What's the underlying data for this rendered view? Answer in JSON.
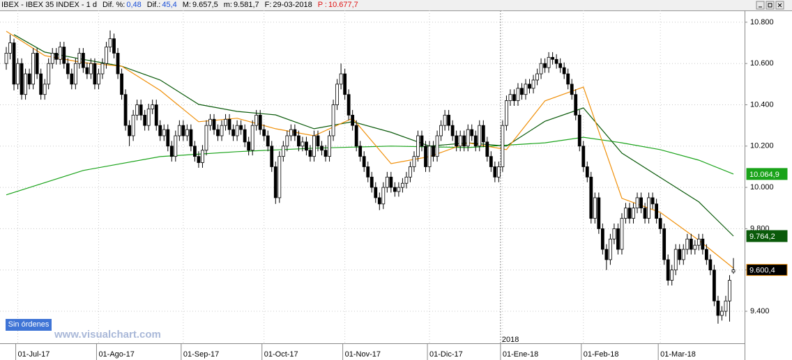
{
  "header": {
    "title": "IBEX - IBEX 35 INDEX - 1 d",
    "fields": [
      {
        "label": "Dif. %:",
        "value": "0,48",
        "color": "#1a4fd8"
      },
      {
        "label": "Dif.:",
        "value": "45,4",
        "color": "#1a4fd8"
      },
      {
        "label": "M:",
        "value": "9.657,5",
        "color": "#000000"
      },
      {
        "label": "m:",
        "value": "9.581,7",
        "color": "#000000"
      },
      {
        "label": "F:",
        "value": "29-03-2018",
        "color": "#000000"
      },
      {
        "label": "P :",
        "value": "10.677,7",
        "color": "#e01010"
      }
    ]
  },
  "button": "Sin órdenes",
  "watermark": "www.visualchart.com",
  "chart_data": {
    "type": "candlestick",
    "year_marker": "2018",
    "grid": true,
    "ylim": [
      9245,
      10857
    ],
    "yticks": [
      {
        "value": 10800,
        "label": "10.800"
      },
      {
        "value": 10600,
        "label": "10.600"
      },
      {
        "value": 10400,
        "label": "10.400"
      },
      {
        "value": 10200,
        "label": "10.200"
      },
      {
        "value": 10000,
        "label": "10.000"
      },
      {
        "value": 9800,
        "label": "9.800"
      },
      {
        "value": 9600,
        "label": "9.600"
      },
      {
        "value": 9400,
        "label": "9.400"
      }
    ],
    "categories": [
      null,
      null,
      null,
      "01-Jul-17",
      null,
      null,
      null,
      null,
      null,
      null,
      null,
      null,
      null,
      null,
      null,
      null,
      null,
      null,
      null,
      null,
      null,
      null,
      null,
      null,
      "01-Ago-17",
      null,
      null,
      null,
      null,
      null,
      null,
      null,
      null,
      null,
      null,
      null,
      null,
      null,
      null,
      null,
      null,
      null,
      null,
      null,
      null,
      null,
      "01-Sep-17",
      null,
      null,
      null,
      null,
      null,
      null,
      null,
      null,
      null,
      null,
      null,
      null,
      null,
      null,
      null,
      null,
      null,
      null,
      null,
      null,
      "01-Oct-17",
      null,
      null,
      null,
      null,
      null,
      null,
      null,
      null,
      null,
      null,
      null,
      null,
      null,
      null,
      null,
      null,
      null,
      null,
      null,
      null,
      "01-Nov-17",
      null,
      null,
      null,
      null,
      null,
      null,
      null,
      null,
      null,
      null,
      null,
      null,
      null,
      null,
      null,
      null,
      null,
      null,
      null,
      null,
      null,
      "01-Dic-17",
      null,
      null,
      null,
      null,
      null,
      null,
      null,
      null,
      null,
      null,
      null,
      null,
      null,
      null,
      null,
      null,
      null,
      null,
      "01-Ene-18",
      null,
      null,
      null,
      null,
      null,
      null,
      null,
      null,
      null,
      null,
      null,
      null,
      null,
      null,
      null,
      null,
      null,
      null,
      null,
      null,
      "01-Feb-18",
      null,
      null,
      null,
      null,
      null,
      null,
      null,
      null,
      null,
      null,
      null,
      null,
      null,
      null,
      null,
      null,
      null,
      null,
      null,
      "01-Mar-18",
      null,
      null,
      null,
      null,
      null,
      null,
      null,
      null,
      null,
      null,
      null,
      null,
      null,
      null,
      null,
      null,
      null,
      null,
      null
    ],
    "open": [
      10600,
      10650,
      10700,
      10500,
      10600,
      10450,
      10550,
      10500,
      10650,
      10550,
      10450,
      10500,
      10600,
      10650,
      10620,
      10680,
      10600,
      10550,
      10500,
      10600,
      10650,
      10580,
      10550,
      10600,
      10500,
      10550,
      10600,
      10680,
      10720,
      10650,
      10550,
      10450,
      10300,
      10250,
      10350,
      10400,
      10350,
      10300,
      10380,
      10400,
      10300,
      10250,
      10280,
      10200,
      10150,
      10250,
      10300,
      10250,
      10280,
      10200,
      10150,
      10120,
      10180,
      10300,
      10330,
      10280,
      10250,
      10300,
      10330,
      10280,
      10250,
      10300,
      10280,
      10220,
      10180,
      10300,
      10350,
      10280,
      10250,
      10200,
      10100,
      9950,
      10150,
      10200,
      10250,
      10280,
      10250,
      10200,
      10220,
      10180,
      10150,
      10250,
      10200,
      10180,
      10150,
      10250,
      10400,
      10500,
      10550,
      10450,
      10350,
      10300,
      10200,
      10150,
      10100,
      10050,
      10000,
      9950,
      9920,
      10000,
      10050,
      10000,
      9980,
      10000,
      10020,
      10050,
      10100,
      10150,
      10250,
      10200,
      10100,
      10200,
      10150,
      10250,
      10300,
      10350,
      10300,
      10250,
      10200,
      10250,
      10200,
      10280,
      10250,
      10200,
      10300,
      10220,
      10150,
      10100,
      10050,
      10100,
      10300,
      10420,
      10450,
      10420,
      10480,
      10450,
      10500,
      10480,
      10520,
      10550,
      10600,
      10580,
      10630,
      10620,
      10600,
      10580,
      10550,
      10500,
      10450,
      10350,
      10200,
      10100,
      10050,
      9850,
      9950,
      9800,
      9700,
      9650,
      9750,
      9800,
      9700,
      9850,
      9900,
      9850,
      9900,
      9950,
      9900,
      9850,
      9950,
      9920,
      9850,
      9800,
      9650,
      9550,
      9600,
      9700,
      9650,
      9700,
      9750,
      9700,
      9720,
      9750,
      9700,
      9650,
      9600,
      9450,
      9380,
      9400,
      9450,
      9590
    ],
    "high": [
      10680,
      10740,
      10720,
      10625,
      10625,
      10575,
      10575,
      10675,
      10675,
      10575,
      10525,
      10625,
      10675,
      10675,
      10705,
      10705,
      10625,
      10575,
      10625,
      10675,
      10675,
      10605,
      10625,
      10625,
      10575,
      10625,
      10705,
      10760,
      10745,
      10675,
      10575,
      10475,
      10325,
      10375,
      10425,
      10425,
      10375,
      10405,
      10425,
      10425,
      10325,
      10305,
      10305,
      10225,
      10275,
      10325,
      10325,
      10305,
      10305,
      10225,
      10175,
      10205,
      10325,
      10355,
      10355,
      10305,
      10325,
      10355,
      10355,
      10305,
      10325,
      10325,
      10305,
      10245,
      10325,
      10375,
      10375,
      10305,
      10275,
      10225,
      10125,
      10175,
      10225,
      10275,
      10305,
      10305,
      10275,
      10245,
      10245,
      10205,
      10275,
      10275,
      10225,
      10205,
      10275,
      10425,
      10525,
      10600,
      10575,
      10475,
      10375,
      10325,
      10225,
      10175,
      10125,
      10075,
      10025,
      9975,
      10025,
      10075,
      10075,
      10025,
      10025,
      10045,
      10075,
      10125,
      10175,
      10275,
      10275,
      10225,
      10225,
      10225,
      10275,
      10325,
      10375,
      10375,
      10325,
      10275,
      10275,
      10275,
      10305,
      10305,
      10275,
      10325,
      10325,
      10245,
      10175,
      10125,
      10125,
      10325,
      10445,
      10475,
      10475,
      10505,
      10505,
      10525,
      10525,
      10545,
      10575,
      10625,
      10625,
      10655,
      10655,
      10645,
      10625,
      10605,
      10575,
      10525,
      10475,
      10375,
      10225,
      10125,
      10075,
      9975,
      9975,
      9825,
      9725,
      9775,
      9825,
      9825,
      9875,
      9925,
      9925,
      9925,
      9975,
      9975,
      9925,
      9975,
      9975,
      9945,
      9875,
      9825,
      9675,
      9625,
      9725,
      9725,
      9725,
      9775,
      9775,
      9745,
      9775,
      9775,
      9725,
      9675,
      9625,
      9475,
      9425,
      9475,
      9575,
      9657.5
    ],
    "low": [
      10570,
      10620,
      10470,
      10475,
      10425,
      10425,
      10475,
      10475,
      10525,
      10425,
      10425,
      10475,
      10575,
      10595,
      10595,
      10575,
      10525,
      10475,
      10475,
      10575,
      10555,
      10525,
      10525,
      10475,
      10475,
      10525,
      10575,
      10655,
      10625,
      10525,
      10425,
      10275,
      10200,
      10225,
      10325,
      10325,
      10275,
      10275,
      10355,
      10275,
      10225,
      10225,
      10175,
      10125,
      10125,
      10225,
      10225,
      10225,
      10175,
      10125,
      10095,
      10095,
      10155,
      10275,
      10255,
      10225,
      10225,
      10275,
      10255,
      10225,
      10225,
      10255,
      10195,
      10155,
      10155,
      10275,
      10255,
      10225,
      10175,
      10075,
      9920,
      9925,
      10125,
      10175,
      10225,
      10225,
      10175,
      10175,
      10155,
      10125,
      10125,
      10175,
      10155,
      10125,
      10125,
      10225,
      10375,
      10475,
      10425,
      10325,
      10275,
      10175,
      10125,
      10075,
      10025,
      9975,
      9925,
      9890,
      9895,
      9975,
      9975,
      9955,
      9955,
      9975,
      9995,
      10025,
      10075,
      10125,
      10175,
      10075,
      10075,
      10125,
      10125,
      10225,
      10275,
      10275,
      10225,
      10175,
      10175,
      10175,
      10175,
      10225,
      10175,
      10175,
      10195,
      10125,
      10075,
      10025,
      10025,
      10075,
      10275,
      10395,
      10395,
      10395,
      10425,
      10425,
      10455,
      10455,
      10495,
      10525,
      10555,
      10555,
      10595,
      10575,
      10555,
      10525,
      10475,
      10425,
      10325,
      10175,
      10075,
      10025,
      9825,
      9825,
      9775,
      9675,
      9600,
      9625,
      9725,
      9675,
      9675,
      9825,
      9825,
      9825,
      9875,
      9875,
      9825,
      9825,
      9895,
      9825,
      9775,
      9625,
      9525,
      9525,
      9575,
      9625,
      9625,
      9675,
      9675,
      9675,
      9695,
      9675,
      9625,
      9575,
      9425,
      9340,
      9355,
      9375,
      9350,
      9581.7
    ],
    "close": [
      10650,
      10700,
      10500,
      10600,
      10450,
      10550,
      10500,
      10650,
      10550,
      10450,
      10500,
      10600,
      10650,
      10620,
      10680,
      10600,
      10550,
      10500,
      10600,
      10650,
      10580,
      10550,
      10600,
      10500,
      10550,
      10600,
      10680,
      10720,
      10650,
      10550,
      10450,
      10300,
      10250,
      10350,
      10400,
      10350,
      10300,
      10380,
      10400,
      10300,
      10250,
      10280,
      10200,
      10150,
      10250,
      10300,
      10250,
      10280,
      10200,
      10150,
      10120,
      10180,
      10300,
      10330,
      10280,
      10250,
      10300,
      10330,
      10280,
      10250,
      10300,
      10280,
      10220,
      10180,
      10300,
      10350,
      10280,
      10250,
      10200,
      10100,
      9950,
      10150,
      10200,
      10250,
      10280,
      10250,
      10200,
      10220,
      10180,
      10150,
      10250,
      10200,
      10180,
      10150,
      10250,
      10400,
      10500,
      10550,
      10450,
      10350,
      10300,
      10200,
      10150,
      10100,
      10050,
      10000,
      9950,
      9920,
      10000,
      10050,
      10000,
      9980,
      10000,
      10020,
      10050,
      10100,
      10150,
      10250,
      10200,
      10100,
      10200,
      10150,
      10250,
      10300,
      10350,
      10300,
      10250,
      10200,
      10250,
      10200,
      10280,
      10250,
      10200,
      10300,
      10220,
      10150,
      10100,
      10050,
      10100,
      10300,
      10420,
      10450,
      10420,
      10480,
      10450,
      10500,
      10480,
      10520,
      10550,
      10600,
      10580,
      10630,
      10620,
      10600,
      10580,
      10550,
      10500,
      10450,
      10350,
      10200,
      10100,
      10050,
      9850,
      9950,
      9800,
      9700,
      9650,
      9750,
      9800,
      9700,
      9850,
      9900,
      9850,
      9900,
      9950,
      9900,
      9850,
      9950,
      9920,
      9850,
      9800,
      9650,
      9550,
      9600,
      9700,
      9650,
      9700,
      9750,
      9700,
      9720,
      9750,
      9700,
      9650,
      9600,
      9450,
      9380,
      9400,
      9450,
      9550,
      9600.4
    ],
    "close_label": "9.600,4",
    "lines": [
      {
        "color": "#1aa31a",
        "x": [
          0,
          20,
          40,
          60,
          80,
          100,
          120,
          140,
          150,
          160,
          170,
          180,
          189
        ],
        "values": [
          9964,
          10082,
          10149,
          10173,
          10190,
          10200,
          10193,
          10216,
          10243,
          10216,
          10183,
          10132,
          10064.9
        ],
        "last_label": "10.064,9"
      },
      {
        "color": "#0a5a0a",
        "x": [
          2,
          10,
          20,
          30,
          40,
          50,
          60,
          70,
          80,
          90,
          100,
          110,
          120,
          130,
          140,
          150,
          160,
          170,
          180,
          189
        ],
        "values": [
          10740,
          10655,
          10620,
          10587,
          10520,
          10402,
          10368,
          10351,
          10284,
          10318,
          10267,
          10200,
          10216,
          10200,
          10320,
          10385,
          10166,
          10048,
          9930,
          9764.2
        ],
        "last_label": "9.764,2"
      },
      {
        "color": "#f0900a",
        "x": [
          0,
          10,
          20,
          30,
          40,
          50,
          60,
          70,
          80,
          90,
          100,
          110,
          120,
          130,
          140,
          150,
          160,
          170,
          180,
          189
        ],
        "values": [
          10756,
          10638,
          10604,
          10587,
          10470,
          10318,
          10335,
          10284,
          10250,
          10335,
          10115,
          10149,
          10216,
          10183,
          10419,
          10486,
          9947,
          9879,
          9744,
          9609
        ]
      }
    ]
  }
}
